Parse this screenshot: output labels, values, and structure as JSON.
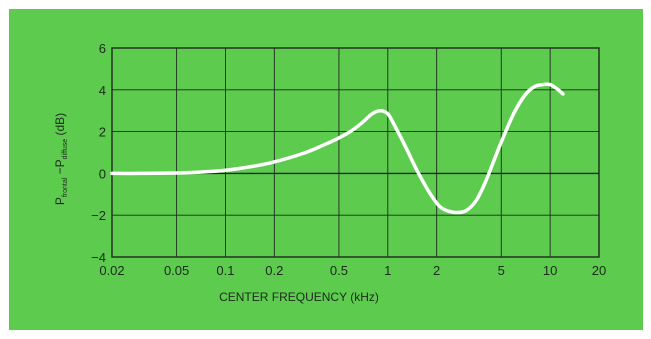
{
  "chart_data": {
    "type": "line",
    "title": "",
    "xlabel": "CENTER FREQUENCY (kHz)",
    "ylabel": {
      "p1": "P",
      "s1": "frontal",
      "dash": " −P",
      "s2": "diffuse",
      "unit": " (dB)"
    },
    "x_scale": "log",
    "xlim": [
      0.02,
      20
    ],
    "ylim": [
      -4,
      6
    ],
    "x_ticks": [
      0.02,
      0.05,
      0.1,
      0.2,
      0.5,
      1,
      2,
      5,
      10,
      20
    ],
    "x_tick_labels": [
      "0.02",
      "0.05",
      "0.1",
      "0.2",
      "0.5",
      "1",
      "2",
      "5",
      "10",
      "20"
    ],
    "x_grid": [
      0.02,
      0.05,
      0.1,
      0.2,
      0.5,
      1,
      2,
      5,
      10,
      20
    ],
    "y_ticks": [
      -4,
      -2,
      0,
      2,
      4,
      6
    ],
    "y_tick_labels": [
      "−4",
      "−2",
      "0",
      "2",
      "4",
      "6"
    ],
    "grid": true,
    "series": [
      {
        "x": [
          0.02,
          0.03,
          0.05,
          0.07,
          0.1,
          0.15,
          0.2,
          0.3,
          0.4,
          0.5,
          0.6,
          0.7,
          0.8,
          0.9,
          1.0,
          1.1,
          1.3,
          1.5,
          1.8,
          2.1,
          2.5,
          3.0,
          3.5,
          4.0,
          4.5,
          5.0,
          6.0,
          7.0,
          8.0,
          9.0,
          10.0,
          11.0,
          12.0
        ],
        "y": [
          0.0,
          0.0,
          0.02,
          0.06,
          0.15,
          0.35,
          0.55,
          0.95,
          1.35,
          1.7,
          2.05,
          2.45,
          2.85,
          3.0,
          2.85,
          2.3,
          1.2,
          0.2,
          -0.9,
          -1.6,
          -1.85,
          -1.8,
          -1.3,
          -0.4,
          0.6,
          1.5,
          2.9,
          3.75,
          4.15,
          4.25,
          4.25,
          4.05,
          3.8
        ]
      }
    ],
    "colors": {
      "background": "#5ccb4e",
      "grid": "#1e2a1e",
      "line": "#ffffff"
    }
  }
}
